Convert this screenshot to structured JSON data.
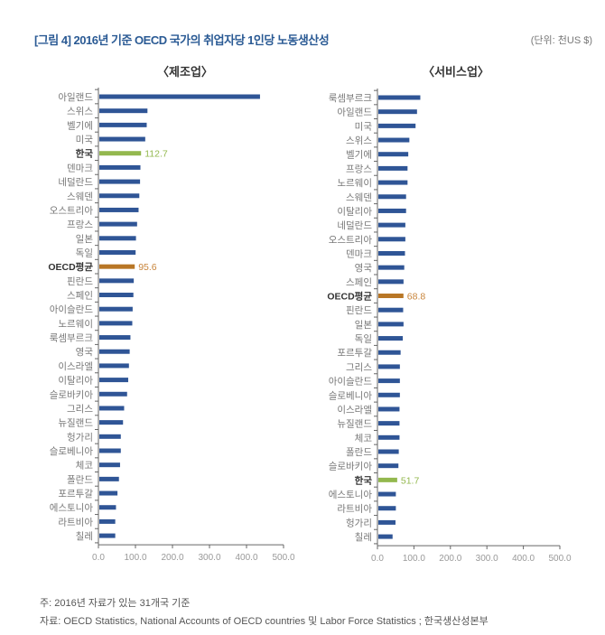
{
  "header": {
    "title": "[그림 4] 2016년 기준 OECD 국가의 취업자당 1인당 노동생산성",
    "unit": "(단위: 천US $)"
  },
  "footer": {
    "note": "주: 2016년 자료가 있는 31개국 기준",
    "source": "자료: OECD Statistics, National Accounts of OECD countries 및 Labor Force Statistics ; 한국생산성본부"
  },
  "colors": {
    "default": "#2f5596",
    "korea": "#93b84e",
    "oecd": "#b87625",
    "korea_label": "#93b84e",
    "oecd_label": "#c8843a"
  },
  "chart_data": [
    {
      "type": "bar",
      "orientation": "horizontal",
      "title": "〈제조업〉",
      "xlim": [
        0,
        500
      ],
      "xticks": [
        "0.0",
        "100.0",
        "200.0",
        "300.0",
        "400.0",
        "500.0"
      ],
      "categories": [
        "아일랜드",
        "스위스",
        "벨기에",
        "미국",
        "한국",
        "덴마크",
        "네덜란드",
        "스웨덴",
        "오스트리아",
        "프랑스",
        "일본",
        "독일",
        "OECD평균",
        "핀란드",
        "스페인",
        "아이슬란드",
        "노르웨이",
        "룩셈부르크",
        "영국",
        "이스라엘",
        "이탈리아",
        "슬로바키아",
        "그리스",
        "뉴질랜드",
        "헝가리",
        "슬로베니아",
        "체코",
        "폴란드",
        "포르투갈",
        "에스토니아",
        "라트비아",
        "칠레"
      ],
      "values": [
        434,
        130,
        128,
        124,
        112.7,
        111,
        110,
        108,
        106,
        102,
        99,
        98,
        95.6,
        93,
        92,
        90,
        89,
        84,
        82,
        80,
        78,
        75,
        67,
        64,
        58,
        58,
        56,
        53,
        49,
        45,
        43,
        43
      ],
      "highlight": {
        "한국": {
          "style": "korea",
          "label": "112.7"
        },
        "OECD평균": {
          "style": "oecd",
          "label": "95.6"
        }
      }
    },
    {
      "type": "bar",
      "orientation": "horizontal",
      "title": "〈서비스업〉",
      "xlim": [
        0,
        500
      ],
      "xticks": [
        "0.0",
        "100.0",
        "200.0",
        "300.0",
        "400.0",
        "500.0"
      ],
      "categories": [
        "룩셈부르크",
        "아일랜드",
        "미국",
        "스위스",
        "벨기에",
        "프랑스",
        "노르웨이",
        "스웨덴",
        "이탈리아",
        "네덜란드",
        "오스트리아",
        "덴마크",
        "영국",
        "스페인",
        "OECD평균",
        "핀란드",
        "일본",
        "독일",
        "포르투갈",
        "그리스",
        "아이슬란드",
        "슬로베니아",
        "이스라엘",
        "뉴질랜드",
        "체코",
        "폴란드",
        "슬로바키아",
        "한국",
        "에스토니아",
        "라트비아",
        "헝가리",
        "칠레"
      ],
      "values": [
        115,
        106,
        102,
        85,
        82,
        80,
        80,
        76,
        76,
        74,
        74,
        73,
        71,
        69,
        68.8,
        68,
        69,
        67,
        61,
        59,
        59,
        59,
        58,
        58,
        58,
        56,
        55,
        51.7,
        48,
        48,
        47,
        39
      ],
      "highlight": {
        "한국": {
          "style": "korea",
          "label": "51.7"
        },
        "OECD평균": {
          "style": "oecd",
          "label": "68.8"
        }
      }
    }
  ]
}
